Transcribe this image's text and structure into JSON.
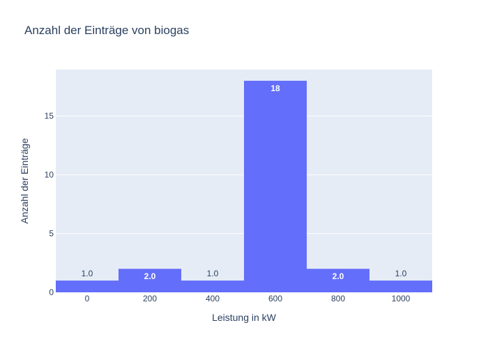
{
  "chart_data": {
    "type": "bar",
    "title": "Anzahl der Einträge von biogas",
    "xlabel": "Leistung in kW",
    "ylabel": "Anzahl der Einträge",
    "x_centers": [
      0,
      200,
      400,
      600,
      800,
      1000
    ],
    "bin_width": 200,
    "values": [
      1,
      2,
      1,
      18,
      2,
      1
    ],
    "data_labels": [
      "1.0",
      "2.0",
      "1.0",
      "18",
      "2.0",
      "1.0"
    ],
    "x_ticks": [
      0,
      200,
      400,
      600,
      800,
      1000
    ],
    "x_tick_labels": [
      "0",
      "200",
      "400",
      "600",
      "800",
      "1000"
    ],
    "y_ticks": [
      0,
      5,
      10,
      15
    ],
    "y_tick_labels": [
      "0",
      "5",
      "10",
      "15"
    ],
    "xlim": [
      -100,
      1100
    ],
    "ylim": [
      0,
      18.95
    ],
    "grid": true,
    "colors": {
      "bar": "#636efa",
      "plot_bg": "#e5ecf6",
      "grid": "#ffffff",
      "text": "#2a3f5f",
      "label_inside": "#ffffff"
    }
  }
}
